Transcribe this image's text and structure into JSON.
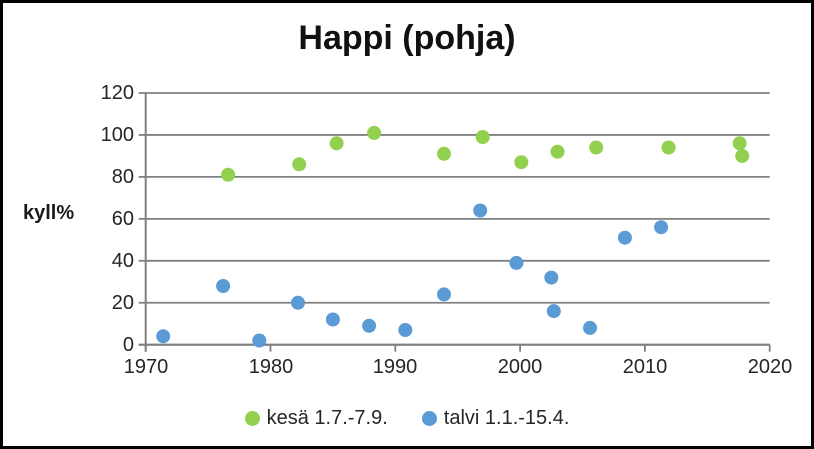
{
  "frame": {
    "background": "#ffffff",
    "border_color": "#000000"
  },
  "chart_data": {
    "type": "scatter",
    "title": "Happi (pohja)",
    "ylabel": "kyll%",
    "xlabel": "",
    "xlim": [
      1970,
      2020
    ],
    "ylim": [
      0,
      120
    ],
    "x_ticks": [
      1970,
      1980,
      1990,
      2000,
      2010,
      2020
    ],
    "y_ticks": [
      0,
      20,
      40,
      60,
      80,
      100,
      120
    ],
    "grid": "horizontal",
    "grid_color": "#808080",
    "axis_color": "#7f7f7f",
    "tick_label_color": "#262626",
    "legend_position": "bottom",
    "marker_radius": 7,
    "series": [
      {
        "name": "kesä 1.7.-7.9.",
        "color": "#92d050",
        "points": [
          [
            1976.6,
            81
          ],
          [
            1982.3,
            86
          ],
          [
            1985.3,
            96
          ],
          [
            1988.3,
            101
          ],
          [
            1993.9,
            91
          ],
          [
            1997.0,
            99
          ],
          [
            2000.1,
            87
          ],
          [
            2003.0,
            92
          ],
          [
            2006.1,
            94
          ],
          [
            2011.9,
            94
          ],
          [
            2017.6,
            96
          ],
          [
            2017.8,
            90
          ]
        ]
      },
      {
        "name": "talvi 1.1.-15.4.",
        "color": "#5b9bd5",
        "points": [
          [
            1971.4,
            4
          ],
          [
            1976.2,
            28
          ],
          [
            1979.1,
            2
          ],
          [
            1982.2,
            20
          ],
          [
            1985.0,
            12
          ],
          [
            1987.9,
            9
          ],
          [
            1990.8,
            7
          ],
          [
            1993.9,
            24
          ],
          [
            1996.8,
            64
          ],
          [
            1999.7,
            39
          ],
          [
            2002.5,
            32
          ],
          [
            2002.7,
            16
          ],
          [
            2005.6,
            8
          ],
          [
            2008.4,
            51
          ],
          [
            2011.3,
            56
          ]
        ]
      }
    ]
  }
}
